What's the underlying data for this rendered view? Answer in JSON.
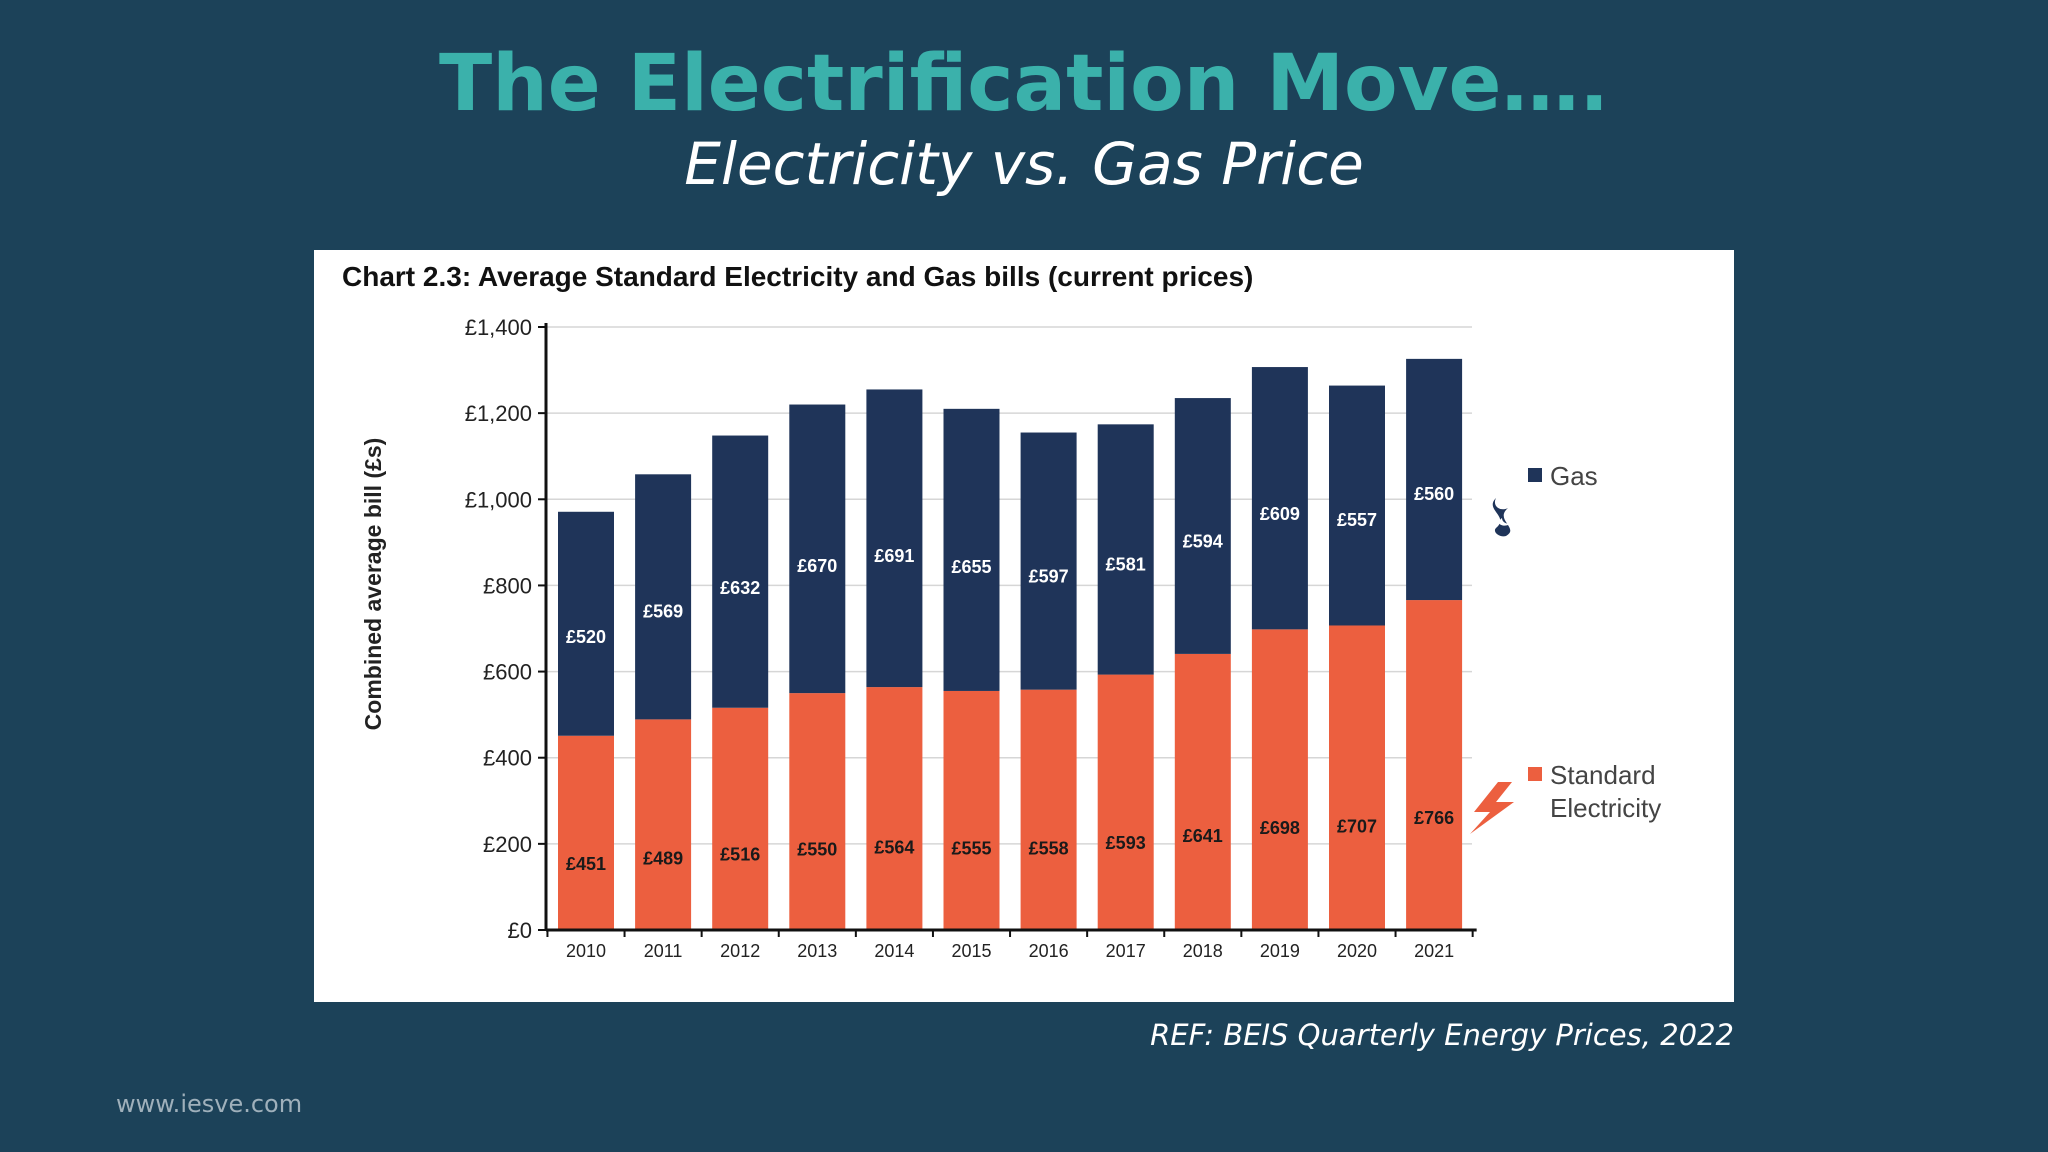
{
  "slide": {
    "title": "The Electrification Move….",
    "subtitle": "Electricity vs. Gas Price",
    "reference": "REF: BEIS Quarterly Energy Prices, 2022",
    "website": "www.iesve.com"
  },
  "colors": {
    "background": "#1c4259",
    "title": "#3bb1ab",
    "gas": "#1f3459",
    "electricity": "#ec5f3f"
  },
  "icons": {
    "gas": "flame-icon",
    "electricity": "lightning-icon"
  },
  "chart_data": {
    "type": "bar",
    "stacked": true,
    "title": "Chart 2.3: Average Standard Electricity and Gas bills (current prices)",
    "ylabel": "Combined average bill (£s)",
    "xlabel": "",
    "ylim": [
      0,
      1400
    ],
    "yticks": [
      0,
      200,
      400,
      600,
      800,
      1000,
      1200,
      1400
    ],
    "ytick_labels": [
      "£0",
      "£200",
      "£400",
      "£600",
      "£800",
      "£1,000",
      "£1,200",
      "£1,400"
    ],
    "grid": true,
    "legend_position": "right",
    "categories": [
      "2010",
      "2011",
      "2012",
      "2013",
      "2014",
      "2015",
      "2016",
      "2017",
      "2018",
      "2019",
      "2020",
      "2021"
    ],
    "series": [
      {
        "name": "Standard Electricity",
        "color": "#ec5f3f",
        "values": [
          451,
          489,
          516,
          550,
          564,
          555,
          558,
          593,
          641,
          698,
          707,
          766
        ],
        "labels": [
          "£451",
          "£489",
          "£516",
          "£550",
          "£564",
          "£555",
          "£558",
          "£593",
          "£641",
          "£698",
          "£707",
          "£766"
        ]
      },
      {
        "name": "Gas",
        "color": "#1f3459",
        "values": [
          520,
          569,
          632,
          670,
          691,
          655,
          597,
          581,
          594,
          609,
          557,
          560
        ],
        "labels": [
          "£520",
          "£569",
          "£632",
          "£670",
          "£691",
          "£655",
          "£597",
          "£581",
          "£594",
          "£609",
          "£557",
          "£560"
        ]
      }
    ],
    "legend": [
      {
        "label": "Gas",
        "series": "Gas"
      },
      {
        "label_lines": [
          "Standard",
          "Electricity"
        ],
        "series": "Standard Electricity"
      }
    ]
  }
}
